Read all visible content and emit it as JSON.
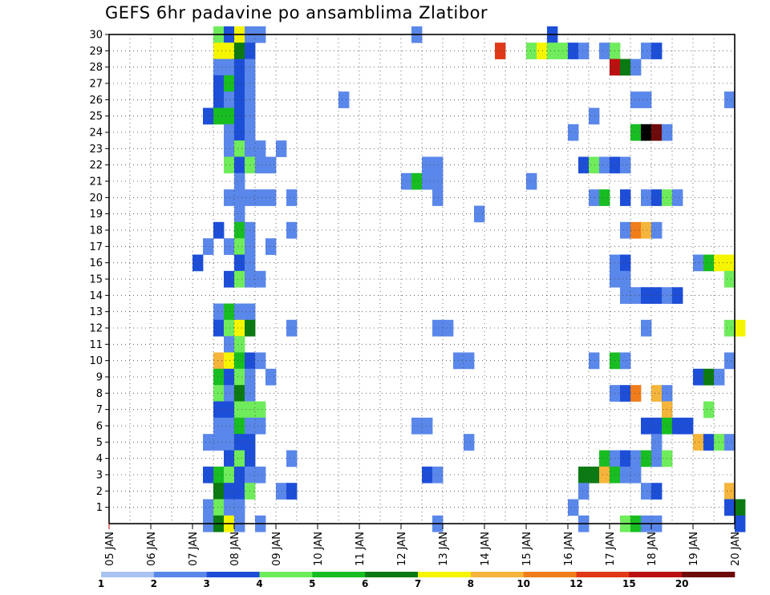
{
  "chart_data": {
    "type": "heatmap",
    "title": "GEFS 6hr padavine po ansamblima Zlatibor",
    "xlabel": "",
    "ylabel": "",
    "x_start_day": 5,
    "x_end_day": 20,
    "steps_per_day": 4,
    "x_tick_labels": [
      "05 JAN",
      "06 JAN",
      "07 JAN",
      "08 JAN",
      "09 JAN",
      "10 JAN",
      "11 JAN",
      "12 JAN",
      "13 JAN",
      "14 JAN",
      "15 JAN",
      "16 JAN",
      "17 JAN",
      "18 JAN",
      "19 JAN",
      "20 JAN"
    ],
    "y_range": [
      0,
      30
    ],
    "y_tick_labels": [
      "1",
      "2",
      "3",
      "4",
      "5",
      "6",
      "7",
      "8",
      "9",
      "10",
      "11",
      "12",
      "13",
      "14",
      "15",
      "16",
      "17",
      "18",
      "19",
      "20",
      "21",
      "22",
      "23",
      "24",
      "25",
      "26",
      "27",
      "28",
      "29",
      "30"
    ],
    "grid": true,
    "colorbar": {
      "labels": [
        "1",
        "2",
        "3",
        "4",
        "5",
        "6",
        "7",
        "8",
        "10",
        "12",
        "15",
        "20"
      ],
      "colors": [
        "#a9c2f2",
        "#5a87ea",
        "#1d4ed8",
        "#6fec5b",
        "#18bd22",
        "#0b7a12",
        "#f5f500",
        "#f5b43a",
        "#f07c1a",
        "#e03818",
        "#bb1010",
        "#6e0a0a"
      ],
      "placement": "bottom"
    },
    "cells": [
      [
        30,
        10,
        3
      ],
      [
        30,
        11,
        2
      ],
      [
        30,
        12,
        6
      ],
      [
        30,
        13,
        1
      ],
      [
        30,
        14,
        1
      ],
      [
        30,
        29,
        1
      ],
      [
        30,
        42,
        2
      ],
      [
        29,
        10,
        6
      ],
      [
        29,
        11,
        6
      ],
      [
        29,
        12,
        5
      ],
      [
        29,
        13,
        2
      ],
      [
        29,
        37,
        9
      ],
      [
        29,
        40,
        3
      ],
      [
        29,
        41,
        6
      ],
      [
        29,
        42,
        3
      ],
      [
        29,
        43,
        3
      ],
      [
        29,
        44,
        2
      ],
      [
        29,
        45,
        1
      ],
      [
        29,
        47,
        1
      ],
      [
        29,
        48,
        3
      ],
      [
        29,
        51,
        1
      ],
      [
        29,
        52,
        2
      ],
      [
        28,
        10,
        1
      ],
      [
        28,
        11,
        1
      ],
      [
        28,
        12,
        2
      ],
      [
        28,
        13,
        1
      ],
      [
        28,
        48,
        10
      ],
      [
        28,
        49,
        5
      ],
      [
        28,
        50,
        1
      ],
      [
        27,
        10,
        2
      ],
      [
        27,
        11,
        4
      ],
      [
        27,
        12,
        2
      ],
      [
        27,
        13,
        1
      ],
      [
        26,
        10,
        2
      ],
      [
        26,
        11,
        1
      ],
      [
        26,
        12,
        2
      ],
      [
        26,
        13,
        1
      ],
      [
        26,
        22,
        1
      ],
      [
        26,
        50,
        1
      ],
      [
        26,
        51,
        1
      ],
      [
        26,
        59,
        1
      ],
      [
        25,
        9,
        2
      ],
      [
        25,
        10,
        4
      ],
      [
        25,
        11,
        4
      ],
      [
        25,
        12,
        2
      ],
      [
        25,
        13,
        1
      ],
      [
        25,
        46,
        1
      ],
      [
        24,
        11,
        1
      ],
      [
        24,
        12,
        2
      ],
      [
        24,
        13,
        1
      ],
      [
        24,
        44,
        1
      ],
      [
        24,
        50,
        4
      ],
      [
        24,
        51,
        12
      ],
      [
        24,
        52,
        11
      ],
      [
        24,
        53,
        1
      ],
      [
        23,
        11,
        1
      ],
      [
        23,
        12,
        3
      ],
      [
        23,
        13,
        1
      ],
      [
        23,
        14,
        1
      ],
      [
        23,
        16,
        1
      ],
      [
        22,
        11,
        3
      ],
      [
        22,
        12,
        2
      ],
      [
        22,
        13,
        3
      ],
      [
        22,
        14,
        1
      ],
      [
        22,
        15,
        1
      ],
      [
        22,
        30,
        1
      ],
      [
        22,
        31,
        1
      ],
      [
        22,
        45,
        2
      ],
      [
        22,
        46,
        3
      ],
      [
        22,
        47,
        1
      ],
      [
        22,
        48,
        2
      ],
      [
        22,
        49,
        1
      ],
      [
        21,
        12,
        1
      ],
      [
        21,
        28,
        1
      ],
      [
        21,
        29,
        4
      ],
      [
        21,
        30,
        1
      ],
      [
        21,
        31,
        1
      ],
      [
        21,
        40,
        1
      ],
      [
        20,
        11,
        1
      ],
      [
        20,
        12,
        1
      ],
      [
        20,
        13,
        1
      ],
      [
        20,
        14,
        1
      ],
      [
        20,
        15,
        1
      ],
      [
        20,
        17,
        1
      ],
      [
        20,
        31,
        1
      ],
      [
        20,
        46,
        1
      ],
      [
        20,
        47,
        4
      ],
      [
        20,
        49,
        2
      ],
      [
        20,
        51,
        1
      ],
      [
        20,
        52,
        2
      ],
      [
        20,
        53,
        3
      ],
      [
        20,
        54,
        1
      ],
      [
        19,
        12,
        1
      ],
      [
        19,
        35,
        1
      ],
      [
        18,
        10,
        2
      ],
      [
        18,
        12,
        4
      ],
      [
        18,
        13,
        1
      ],
      [
        18,
        17,
        1
      ],
      [
        18,
        49,
        1
      ],
      [
        18,
        50,
        8
      ],
      [
        18,
        51,
        7
      ],
      [
        18,
        52,
        1
      ],
      [
        17,
        9,
        1
      ],
      [
        17,
        11,
        1
      ],
      [
        17,
        12,
        3
      ],
      [
        17,
        13,
        1
      ],
      [
        17,
        15,
        1
      ],
      [
        16,
        8,
        2
      ],
      [
        16,
        12,
        2
      ],
      [
        16,
        13,
        1
      ],
      [
        16,
        48,
        1
      ],
      [
        16,
        49,
        2
      ],
      [
        16,
        56,
        1
      ],
      [
        16,
        57,
        4
      ],
      [
        16,
        58,
        6
      ],
      [
        16,
        59,
        6
      ],
      [
        15,
        11,
        2
      ],
      [
        15,
        12,
        3
      ],
      [
        15,
        13,
        1
      ],
      [
        15,
        14,
        1
      ],
      [
        15,
        48,
        1
      ],
      [
        15,
        49,
        1
      ],
      [
        15,
        59,
        3
      ],
      [
        14,
        49,
        1
      ],
      [
        14,
        50,
        1
      ],
      [
        14,
        51,
        2
      ],
      [
        14,
        52,
        2
      ],
      [
        14,
        53,
        1
      ],
      [
        14,
        54,
        2
      ],
      [
        13,
        10,
        1
      ],
      [
        13,
        11,
        4
      ],
      [
        13,
        12,
        1
      ],
      [
        13,
        13,
        1
      ],
      [
        12,
        10,
        2
      ],
      [
        12,
        11,
        3
      ],
      [
        12,
        12,
        6
      ],
      [
        12,
        13,
        5
      ],
      [
        12,
        17,
        1
      ],
      [
        12,
        31,
        1
      ],
      [
        12,
        32,
        1
      ],
      [
        12,
        51,
        1
      ],
      [
        12,
        59,
        3
      ],
      [
        12,
        60,
        6
      ],
      [
        11,
        11,
        1
      ],
      [
        11,
        12,
        3
      ],
      [
        10,
        10,
        7
      ],
      [
        10,
        11,
        6
      ],
      [
        10,
        12,
        4
      ],
      [
        10,
        13,
        2
      ],
      [
        10,
        14,
        1
      ],
      [
        10,
        33,
        1
      ],
      [
        10,
        34,
        1
      ],
      [
        10,
        46,
        1
      ],
      [
        10,
        48,
        4
      ],
      [
        10,
        49,
        1
      ],
      [
        10,
        59,
        1
      ],
      [
        9,
        10,
        4
      ],
      [
        9,
        11,
        2
      ],
      [
        9,
        12,
        3
      ],
      [
        9,
        13,
        1
      ],
      [
        9,
        15,
        1
      ],
      [
        9,
        56,
        2
      ],
      [
        9,
        57,
        5
      ],
      [
        9,
        58,
        1
      ],
      [
        8,
        10,
        3
      ],
      [
        8,
        11,
        1
      ],
      [
        8,
        12,
        5
      ],
      [
        8,
        13,
        1
      ],
      [
        8,
        48,
        1
      ],
      [
        8,
        49,
        2
      ],
      [
        8,
        50,
        8
      ],
      [
        8,
        52,
        7
      ],
      [
        8,
        53,
        1
      ],
      [
        7,
        10,
        2
      ],
      [
        7,
        11,
        2
      ],
      [
        7,
        12,
        3
      ],
      [
        7,
        13,
        3
      ],
      [
        7,
        14,
        3
      ],
      [
        7,
        53,
        7
      ],
      [
        7,
        57,
        3
      ],
      [
        6,
        10,
        1
      ],
      [
        6,
        11,
        1
      ],
      [
        6,
        12,
        4
      ],
      [
        6,
        13,
        1
      ],
      [
        6,
        14,
        1
      ],
      [
        6,
        29,
        1
      ],
      [
        6,
        30,
        1
      ],
      [
        6,
        51,
        2
      ],
      [
        6,
        52,
        2
      ],
      [
        6,
        53,
        4
      ],
      [
        6,
        54,
        2
      ],
      [
        6,
        55,
        2
      ],
      [
        5,
        9,
        1
      ],
      [
        5,
        10,
        1
      ],
      [
        5,
        11,
        1
      ],
      [
        5,
        12,
        2
      ],
      [
        5,
        13,
        2
      ],
      [
        5,
        34,
        1
      ],
      [
        5,
        52,
        1
      ],
      [
        5,
        56,
        7
      ],
      [
        5,
        57,
        2
      ],
      [
        5,
        58,
        3
      ],
      [
        5,
        59,
        1
      ],
      [
        4,
        11,
        2
      ],
      [
        4,
        12,
        3
      ],
      [
        4,
        13,
        2
      ],
      [
        4,
        17,
        1
      ],
      [
        4,
        47,
        4
      ],
      [
        4,
        48,
        1
      ],
      [
        4,
        49,
        2
      ],
      [
        4,
        50,
        1
      ],
      [
        4,
        51,
        4
      ],
      [
        4,
        52,
        1
      ],
      [
        4,
        53,
        3
      ],
      [
        3,
        9,
        2
      ],
      [
        3,
        10,
        4
      ],
      [
        3,
        11,
        3
      ],
      [
        3,
        12,
        2
      ],
      [
        3,
        13,
        1
      ],
      [
        3,
        14,
        1
      ],
      [
        3,
        30,
        2
      ],
      [
        3,
        31,
        1
      ],
      [
        3,
        45,
        5
      ],
      [
        3,
        46,
        5
      ],
      [
        3,
        47,
        7
      ],
      [
        3,
        48,
        4
      ],
      [
        3,
        49,
        1
      ],
      [
        3,
        50,
        1
      ],
      [
        2,
        10,
        5
      ],
      [
        2,
        11,
        2
      ],
      [
        2,
        12,
        2
      ],
      [
        2,
        13,
        3
      ],
      [
        2,
        16,
        1
      ],
      [
        2,
        17,
        2
      ],
      [
        2,
        45,
        1
      ],
      [
        2,
        51,
        1
      ],
      [
        2,
        52,
        2
      ],
      [
        2,
        59,
        7
      ],
      [
        1,
        9,
        1
      ],
      [
        1,
        10,
        3
      ],
      [
        1,
        11,
        1
      ],
      [
        1,
        12,
        1
      ],
      [
        1,
        44,
        1
      ],
      [
        1,
        59,
        2
      ],
      [
        1,
        60,
        5
      ],
      [
        0,
        9,
        1
      ],
      [
        0,
        10,
        5
      ],
      [
        0,
        11,
        6
      ],
      [
        0,
        12,
        1
      ],
      [
        0,
        14,
        1
      ],
      [
        0,
        31,
        1
      ],
      [
        0,
        45,
        1
      ],
      [
        0,
        49,
        3
      ],
      [
        0,
        50,
        4
      ],
      [
        0,
        51,
        1
      ],
      [
        0,
        52,
        1
      ],
      [
        0,
        60,
        2
      ]
    ]
  }
}
